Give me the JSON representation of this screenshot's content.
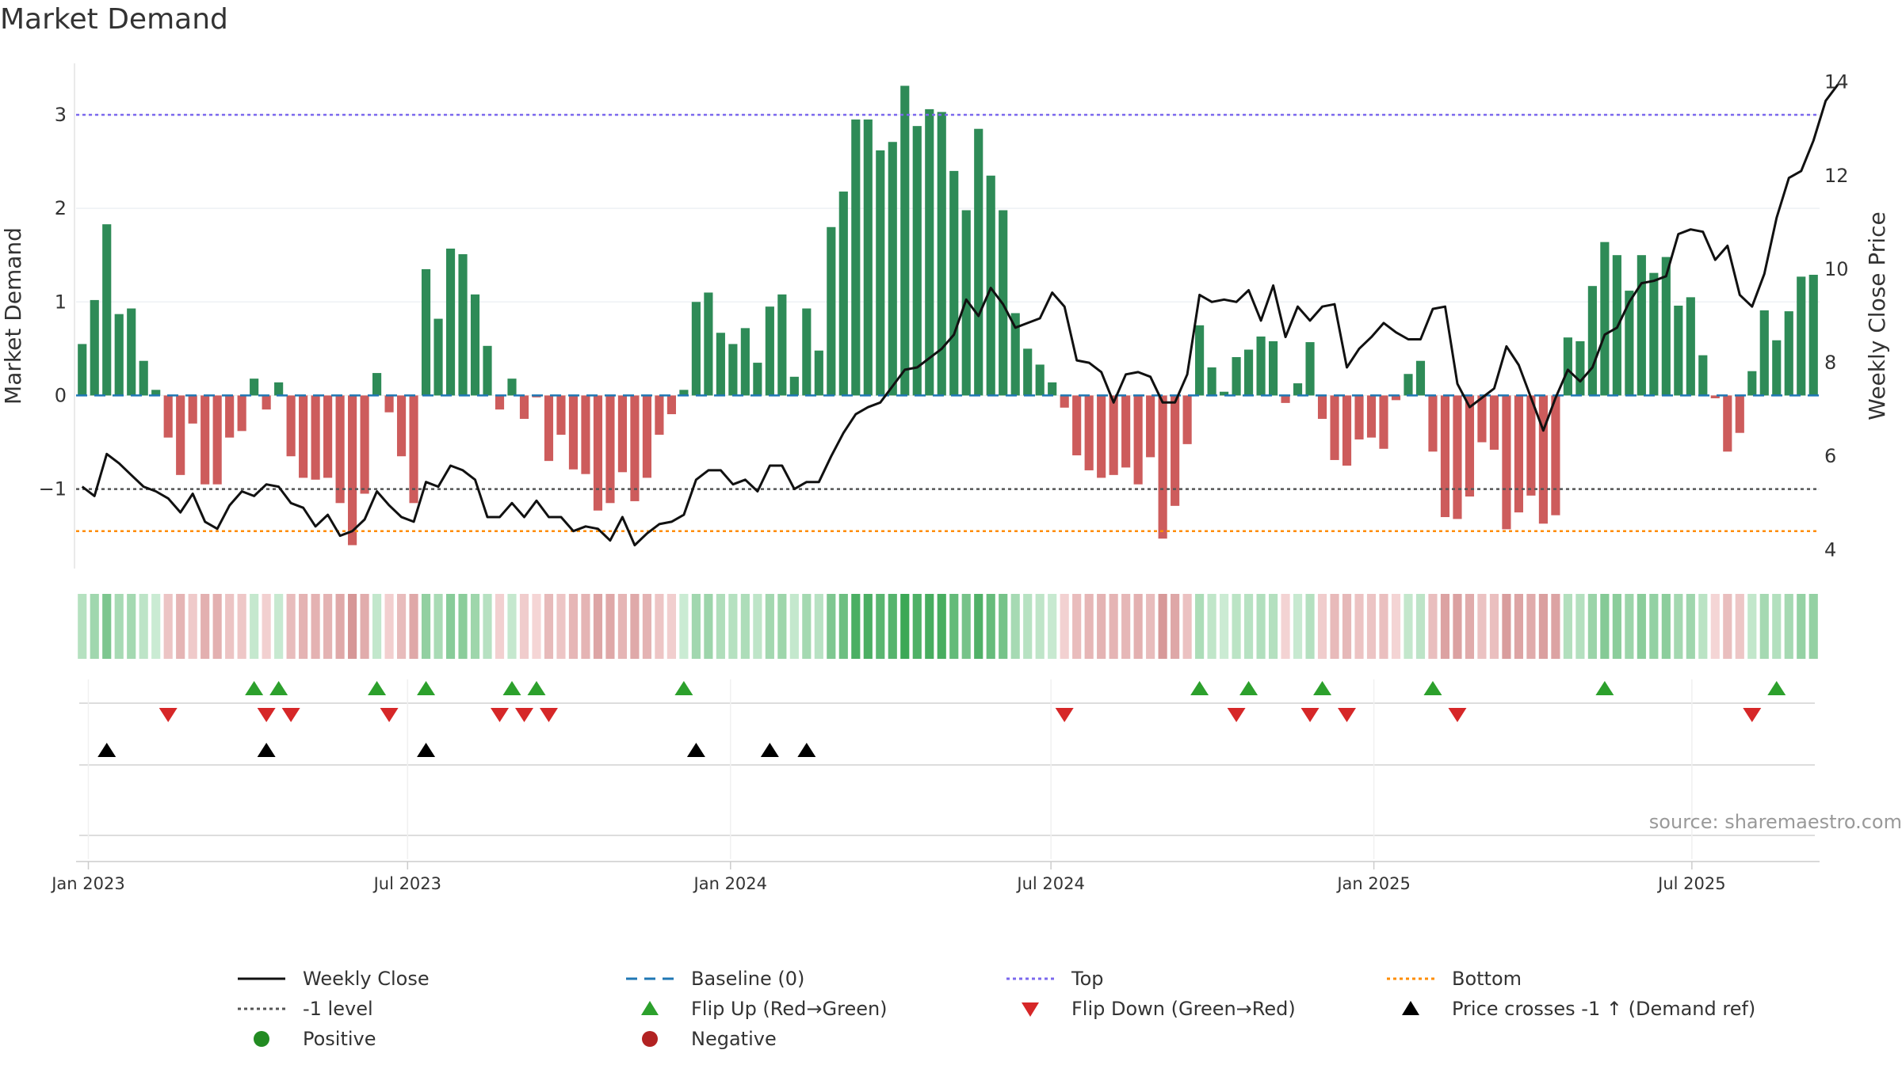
{
  "title": "Market Demand",
  "source": "source: sharemaestro.com",
  "colors": {
    "positive_bar": "#2e8b57",
    "negative_bar": "#cd5c5c",
    "close_line": "#111111",
    "baseline": "#1f77b4",
    "top": "#7b68ee",
    "level_minus1": "#555555",
    "bottom": "#ff8c00",
    "flip_up": "#2ca02c",
    "flip_down": "#d62728",
    "price_cross": "#000000"
  },
  "legend": [
    {
      "key": "close",
      "label": "Weekly Close",
      "icon": "solid-line-icon"
    },
    {
      "key": "baseline",
      "label": "Baseline (0)",
      "icon": "dashed-line-icon"
    },
    {
      "key": "top",
      "label": "Top",
      "icon": "dotted-line-icon"
    },
    {
      "key": "bottom",
      "label": "Bottom",
      "icon": "dotted-line-icon"
    },
    {
      "key": "level",
      "label": "-1 level",
      "icon": "dotted-line-icon"
    },
    {
      "key": "flip_up",
      "label": "Flip Up (Red→Green)",
      "icon": "triangle-up-icon"
    },
    {
      "key": "flip_down",
      "label": "Flip Down (Green→Red)",
      "icon": "triangle-down-icon"
    },
    {
      "key": "cross",
      "label": "Price crosses -1 ↑ (Demand ref)",
      "icon": "triangle-up-icon"
    },
    {
      "key": "positive",
      "label": "Positive",
      "icon": "circle-icon"
    },
    {
      "key": "negative",
      "label": "Negative",
      "icon": "circle-icon"
    }
  ],
  "chart_data": {
    "type": "bar",
    "title": "Market Demand",
    "ylabel": "Market Demand",
    "y2label": "Weekly Close Price",
    "ylim": [
      -1.85,
      3.55
    ],
    "y2lim": [
      3.6,
      14.4
    ],
    "yticks": [
      -1,
      0,
      1,
      2,
      3
    ],
    "ytick_labels": [
      "−1",
      "0",
      "1",
      "2",
      "3"
    ],
    "y2ticks": [
      4,
      6,
      8,
      10,
      12,
      14
    ],
    "x_start": "2022-12-26",
    "x_step_weeks": 1,
    "xticks": [
      {
        "label": "Jan 2023",
        "week": 1
      },
      {
        "label": "Jul 2023",
        "week": 27
      },
      {
        "label": "Jan 2024",
        "week": 53.3
      },
      {
        "label": "Jul 2024",
        "week": 79.4
      },
      {
        "label": "Jan 2025",
        "week": 105.7
      },
      {
        "label": "Jul 2025",
        "week": 131.6
      }
    ],
    "reference_lines": {
      "top": 3.0,
      "level": -1.0,
      "bottom": -1.45,
      "baseline": 0
    },
    "series": [
      {
        "name": "Market Demand",
        "axis": "left",
        "values": [
          0.55,
          1.02,
          1.83,
          0.87,
          0.93,
          0.37,
          0.06,
          -0.45,
          -0.85,
          -0.3,
          -0.95,
          -0.95,
          -0.45,
          -0.38,
          0.18,
          -0.15,
          0.14,
          -0.65,
          -0.88,
          -0.9,
          -0.88,
          -1.15,
          -1.6,
          -1.05,
          0.24,
          -0.18,
          -0.65,
          -1.15,
          1.35,
          0.82,
          1.57,
          1.51,
          1.08,
          0.53,
          -0.15,
          0.18,
          -0.25,
          -0.02,
          -0.7,
          -0.42,
          -0.79,
          -0.84,
          -1.23,
          -1.15,
          -0.82,
          -1.13,
          -0.88,
          -0.42,
          -0.2,
          0.06,
          1.0,
          1.1,
          0.67,
          0.55,
          0.72,
          0.35,
          0.95,
          1.08,
          0.2,
          0.93,
          0.48,
          1.8,
          2.18,
          2.95,
          2.95,
          2.62,
          2.71,
          3.31,
          2.88,
          3.06,
          3.03,
          2.4,
          1.98,
          2.85,
          2.35,
          1.98,
          0.88,
          0.5,
          0.33,
          0.14,
          -0.13,
          -0.64,
          -0.8,
          -0.88,
          -0.85,
          -0.77,
          -0.95,
          -0.66,
          -1.53,
          -1.18,
          -0.52,
          0.75,
          0.3,
          0.04,
          0.41,
          0.49,
          0.63,
          0.58,
          -0.08,
          0.13,
          0.57,
          -0.25,
          -0.69,
          -0.75,
          -0.47,
          -0.45,
          -0.57,
          -0.05,
          0.23,
          0.37,
          -0.6,
          -1.3,
          -1.32,
          -1.08,
          -0.5,
          -0.58,
          -1.43,
          -1.25,
          -1.07,
          -1.37,
          -1.28,
          0.62,
          0.58,
          1.17,
          1.64,
          1.5,
          1.12,
          1.5,
          1.31,
          1.48,
          0.96,
          1.05,
          0.43,
          -0.03,
          -0.6,
          -0.4,
          0.26,
          0.91,
          0.59,
          0.9,
          1.27,
          1.29
        ]
      },
      {
        "name": "Weekly Close",
        "axis": "right",
        "values": [
          5.35,
          5.15,
          6.05,
          5.85,
          5.6,
          5.35,
          5.25,
          5.1,
          4.8,
          5.2,
          4.6,
          4.45,
          4.95,
          5.25,
          5.15,
          5.4,
          5.35,
          5.0,
          4.9,
          4.5,
          4.75,
          4.3,
          4.4,
          4.65,
          5.25,
          4.95,
          4.7,
          4.6,
          5.45,
          5.35,
          5.8,
          5.7,
          5.5,
          4.7,
          4.7,
          5.0,
          4.7,
          5.05,
          4.7,
          4.7,
          4.4,
          4.5,
          4.45,
          4.2,
          4.7,
          4.1,
          4.35,
          4.55,
          4.6,
          4.75,
          5.5,
          5.7,
          5.7,
          5.4,
          5.5,
          5.25,
          5.8,
          5.8,
          5.3,
          5.45,
          5.45,
          6.0,
          6.5,
          6.9,
          7.05,
          7.15,
          7.5,
          7.85,
          7.9,
          8.1,
          8.3,
          8.6,
          9.35,
          9.0,
          9.6,
          9.25,
          8.75,
          8.85,
          8.95,
          9.5,
          9.2,
          8.05,
          8.0,
          7.8,
          7.15,
          7.75,
          7.8,
          7.7,
          7.15,
          7.15,
          7.75,
          9.45,
          9.3,
          9.35,
          9.3,
          9.55,
          8.9,
          9.65,
          8.55,
          9.2,
          8.9,
          9.2,
          9.25,
          7.9,
          8.3,
          8.55,
          8.85,
          8.65,
          8.5,
          8.5,
          9.15,
          9.2,
          7.55,
          7.05,
          7.25,
          7.45,
          8.35,
          7.95,
          7.25,
          6.55,
          7.25,
          7.85,
          7.6,
          7.9,
          8.6,
          8.75,
          9.3,
          9.7,
          9.75,
          9.85,
          10.75,
          10.85,
          10.8,
          10.2,
          10.5,
          9.45,
          9.2,
          9.9,
          11.1,
          11.95,
          12.1,
          12.75,
          13.6,
          13.95
        ]
      }
    ],
    "demand_strip": {
      "description": "weekly color band, same values as Market Demand"
    },
    "signals": {
      "flip_up_weeks": [
        14,
        16,
        24,
        28,
        35,
        37,
        49,
        91,
        95,
        101,
        110,
        124,
        138
      ],
      "flip_down_weeks": [
        7,
        15,
        17,
        25,
        34,
        36,
        38,
        80,
        94,
        100,
        103,
        112,
        136
      ],
      "price_cross_weeks": [
        2,
        15,
        28,
        50,
        56,
        59
      ]
    }
  }
}
